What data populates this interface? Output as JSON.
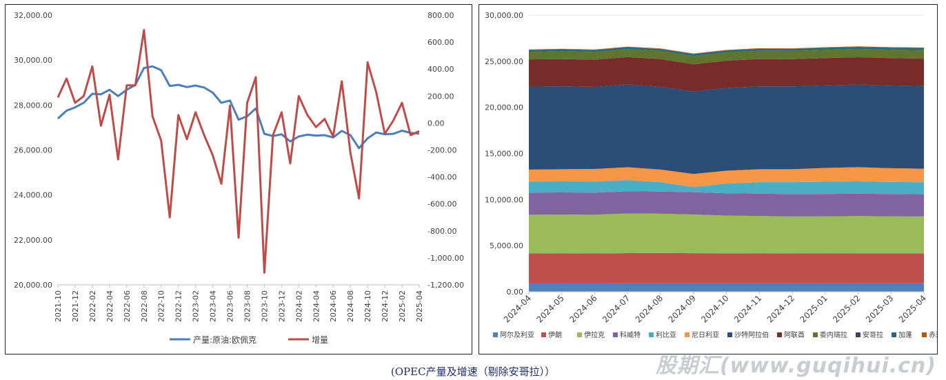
{
  "caption": "(OPEC产量及增速（剔除安哥拉））",
  "watermark": "股期汇(www.guqihui.cn)",
  "chart_data": [
    {
      "type": "line",
      "dual_axis": true,
      "x": [
        "2021-10",
        "2021-11",
        "2021-12",
        "2022-01",
        "2022-02",
        "2022-03",
        "2022-04",
        "2022-05",
        "2022-06",
        "2022-07",
        "2022-08",
        "2022-09",
        "2022-10",
        "2022-11",
        "2022-12",
        "2023-01",
        "2023-02",
        "2023-03",
        "2023-04",
        "2023-05",
        "2023-06",
        "2023-07",
        "2023-08",
        "2023-09",
        "2023-10",
        "2023-11",
        "2023-12",
        "2024-01",
        "2024-02",
        "2024-03",
        "2024-04",
        "2024-05",
        "2024-06",
        "2024-07",
        "2024-08",
        "2024-09",
        "2024-10",
        "2024-11",
        "2024-12",
        "2025-01",
        "2025-02",
        "2025-03",
        "2025-04"
      ],
      "x_tick_labels": [
        "2021-10",
        "2021-12",
        "2022-02",
        "2022-04",
        "2022-06",
        "2022-08",
        "2022-10",
        "2022-12",
        "2023-02",
        "2023-04",
        "2023-06",
        "2023-08",
        "2023-10",
        "2023-12",
        "2024-02",
        "2024-04",
        "2024-06",
        "2024-08",
        "2024-10",
        "2024-12",
        "2025-02",
        "2025-04"
      ],
      "y_left": {
        "ylim": [
          20000,
          32000
        ],
        "ticks": [
          "20,000.00",
          "22,000.00",
          "24,000.00",
          "26,000.00",
          "28,000.00",
          "30,000.00",
          "32,000.00"
        ]
      },
      "y_right": {
        "ylim": [
          -1200,
          800
        ],
        "ticks": [
          "-1,200.00",
          "-1,000.00",
          "-800.00",
          "-600.00",
          "-400.00",
          "-200.00",
          "0.00",
          "200.00",
          "400.00",
          "600.00",
          "800.00"
        ]
      },
      "series": [
        {
          "name": "产量:原油:欧佩克",
          "axis": "left",
          "color": "#4a7ebb",
          "values": [
            27400,
            27750,
            27900,
            28100,
            28500,
            28480,
            28680,
            28400,
            28680,
            28900,
            29650,
            29720,
            29550,
            28850,
            28900,
            28800,
            28870,
            28780,
            28550,
            28100,
            28200,
            27350,
            27500,
            27850,
            26720,
            26620,
            26700,
            26380,
            26600,
            26680,
            26640,
            26660,
            26560,
            26850,
            26660,
            26080,
            26520,
            26780,
            26700,
            26720,
            26860,
            26760,
            26730
          ]
        },
        {
          "name": "增量",
          "axis": "right",
          "color": "#be4b48",
          "values": [
            190,
            330,
            150,
            200,
            420,
            -20,
            210,
            -270,
            280,
            280,
            690,
            50,
            -130,
            -700,
            60,
            -120,
            80,
            -90,
            -240,
            -450,
            130,
            -850,
            150,
            340,
            -1110,
            -90,
            80,
            -300,
            200,
            60,
            -30,
            30,
            -100,
            310,
            -220,
            -560,
            450,
            230,
            -80,
            20,
            150,
            -90,
            -60
          ]
        }
      ]
    },
    {
      "type": "area",
      "stacked": true,
      "x": [
        "2024-04",
        "2024-05",
        "2024-06",
        "2024-07",
        "2024-08",
        "2024-09",
        "2024-10",
        "2024-11",
        "2024-12",
        "2025-01",
        "2025-02",
        "2025-03",
        "2025-04"
      ],
      "ylim": [
        0,
        30000
      ],
      "y_ticks": [
        "0.00",
        "5,000.00",
        "10,000.00",
        "15,000.00",
        "20,000.00",
        "25,000.00",
        "30,000.00"
      ],
      "series": [
        {
          "name": "阿尔及利亚",
          "color": "#4f81bd",
          "values": [
            900,
            900,
            900,
            910,
            910,
            910,
            910,
            910,
            910,
            910,
            910,
            910,
            910
          ]
        },
        {
          "name": "伊朗",
          "color": "#c0504d",
          "values": [
            3250,
            3270,
            3250,
            3280,
            3300,
            3270,
            3250,
            3260,
            3250,
            3240,
            3250,
            3250,
            3250
          ]
        },
        {
          "name": "伊拉克",
          "color": "#9bbb59",
          "values": [
            4200,
            4200,
            4200,
            4300,
            4250,
            4200,
            4100,
            4050,
            4000,
            4020,
            4050,
            4020,
            4000
          ]
        },
        {
          "name": "科威特",
          "color": "#8064a2",
          "values": [
            2400,
            2400,
            2400,
            2410,
            2410,
            2420,
            2420,
            2420,
            2430,
            2430,
            2430,
            2420,
            2420
          ]
        },
        {
          "name": "利比亚",
          "color": "#4bacc6",
          "values": [
            1200,
            1200,
            1200,
            1200,
            1000,
            550,
            1050,
            1250,
            1300,
            1330,
            1330,
            1300,
            1300
          ]
        },
        {
          "name": "尼日利亚",
          "color": "#f79646",
          "values": [
            1300,
            1320,
            1370,
            1400,
            1380,
            1420,
            1400,
            1400,
            1400,
            1500,
            1540,
            1500,
            1470
          ]
        },
        {
          "name": "沙特阿拉伯",
          "color": "#2c4d75",
          "values": [
            9000,
            9000,
            8900,
            9000,
            8980,
            8950,
            8980,
            8990,
            8980,
            8950,
            8970,
            8980,
            8970
          ]
        },
        {
          "name": "阿联酋",
          "color": "#772c2a",
          "values": [
            2950,
            2950,
            2950,
            2950,
            3000,
            2950,
            2950,
            2960,
            2960,
            2960,
            2960,
            2960,
            2960
          ]
        },
        {
          "name": "委内瑞拉",
          "color": "#5f7530",
          "values": [
            800,
            840,
            830,
            860,
            880,
            890,
            890,
            900,
            890,
            900,
            900,
            910,
            930
          ]
        },
        {
          "name": "安哥拉",
          "color": "#4d3b62",
          "values": [
            0,
            0,
            0,
            0,
            0,
            0,
            0,
            0,
            0,
            0,
            0,
            0,
            0
          ]
        },
        {
          "name": "加蓬",
          "color": "#276a7c",
          "values": [
            220,
            220,
            220,
            220,
            220,
            220,
            220,
            220,
            220,
            220,
            220,
            220,
            220
          ]
        },
        {
          "name": "赤道几内亚",
          "color": "#b65708",
          "values": [
            60,
            60,
            60,
            60,
            60,
            60,
            60,
            60,
            60,
            60,
            60,
            60,
            60
          ]
        }
      ]
    }
  ]
}
